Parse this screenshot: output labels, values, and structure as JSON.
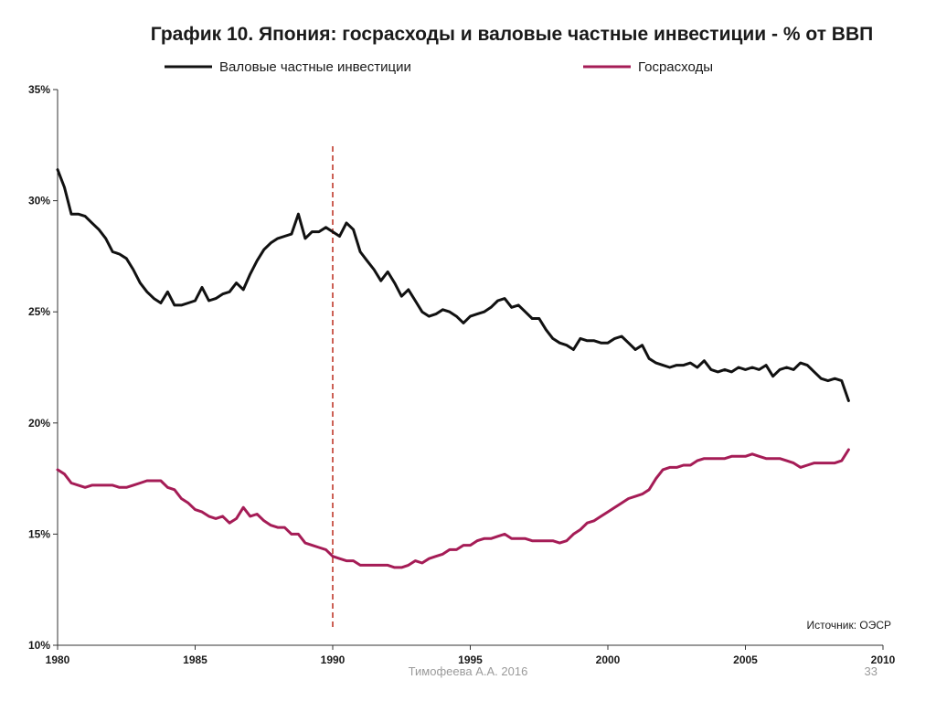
{
  "slide": {
    "footer_author": "Тимофеева А.А. 2016",
    "page_number": "33"
  },
  "chart_data": {
    "type": "line",
    "title": "График 10. Япония: госрасходы и валовые частные инвестиции - % от ВВП",
    "source": "Источник: ОЭСР",
    "xlim": [
      1980,
      2010
    ],
    "ylim": [
      10,
      35
    ],
    "x_ticks": [
      1980,
      1985,
      1990,
      1995,
      2000,
      2005,
      2010
    ],
    "y_ticks": [
      10,
      15,
      20,
      25,
      30,
      35
    ],
    "y_tick_labels": [
      "10%",
      "15%",
      "20%",
      "25%",
      "30%",
      "35%"
    ],
    "x_tick_labels": [
      "1980",
      "1985",
      "1990",
      "1995",
      "2000",
      "2005",
      "2010"
    ],
    "legend_position": "top",
    "reference_line": {
      "x": 1990,
      "style": "dashed",
      "color": "#c0392b"
    },
    "series": [
      {
        "name": "Валовые частные инвестиции",
        "color": "#111111",
        "x": [
          1980.0,
          1980.25,
          1980.5,
          1980.75,
          1981.0,
          1981.25,
          1981.5,
          1981.75,
          1982.0,
          1982.25,
          1982.5,
          1982.75,
          1983.0,
          1983.25,
          1983.5,
          1983.75,
          1984.0,
          1984.25,
          1984.5,
          1984.75,
          1985.0,
          1985.25,
          1985.5,
          1985.75,
          1986.0,
          1986.25,
          1986.5,
          1986.75,
          1987.0,
          1987.25,
          1987.5,
          1987.75,
          1988.0,
          1988.25,
          1988.5,
          1988.75,
          1989.0,
          1989.25,
          1989.5,
          1989.75,
          1990.0,
          1990.25,
          1990.5,
          1990.75,
          1991.0,
          1991.25,
          1991.5,
          1991.75,
          1992.0,
          1992.25,
          1992.5,
          1992.75,
          1993.0,
          1993.25,
          1993.5,
          1993.75,
          1994.0,
          1994.25,
          1994.5,
          1994.75,
          1995.0,
          1995.25,
          1995.5,
          1995.75,
          1996.0,
          1996.25,
          1996.5,
          1996.75,
          1997.0,
          1997.25,
          1997.5,
          1997.75,
          1998.0,
          1998.25,
          1998.5,
          1998.75,
          1999.0,
          1999.25,
          1999.5,
          1999.75,
          2000.0,
          2000.25,
          2000.5,
          2000.75,
          2001.0,
          2001.25,
          2001.5,
          2001.75,
          2002.0,
          2002.25,
          2002.5,
          2002.75,
          2003.0,
          2003.25,
          2003.5,
          2003.75,
          2004.0,
          2004.25,
          2004.5,
          2004.75,
          2005.0,
          2005.25,
          2005.5,
          2005.75,
          2006.0,
          2006.25,
          2006.5,
          2006.75,
          2007.0,
          2007.25,
          2007.5,
          2007.75,
          2008.0,
          2008.25,
          2008.5,
          2008.75
        ],
        "values": [
          31.4,
          30.6,
          29.4,
          29.4,
          29.3,
          29.0,
          28.7,
          28.3,
          27.7,
          27.6,
          27.4,
          26.9,
          26.3,
          25.9,
          25.6,
          25.4,
          25.9,
          25.3,
          25.3,
          25.4,
          25.5,
          26.1,
          25.5,
          25.6,
          25.8,
          25.9,
          26.3,
          26.0,
          26.7,
          27.3,
          27.8,
          28.1,
          28.3,
          28.4,
          28.5,
          29.4,
          28.3,
          28.6,
          28.6,
          28.8,
          28.6,
          28.4,
          29.0,
          28.7,
          27.7,
          27.3,
          26.9,
          26.4,
          26.8,
          26.3,
          25.7,
          26.0,
          25.5,
          25.0,
          24.8,
          24.9,
          25.1,
          25.0,
          24.8,
          24.5,
          24.8,
          24.9,
          25.0,
          25.2,
          25.5,
          25.6,
          25.2,
          25.3,
          25.0,
          24.7,
          24.7,
          24.2,
          23.8,
          23.6,
          23.5,
          23.3,
          23.8,
          23.7,
          23.7,
          23.6,
          23.6,
          23.8,
          23.9,
          23.6,
          23.3,
          23.5,
          22.9,
          22.7,
          22.6,
          22.5,
          22.6,
          22.6,
          22.7,
          22.5,
          22.8,
          22.4,
          22.3,
          22.4,
          22.3,
          22.5,
          22.4,
          22.5,
          22.4,
          22.6,
          22.1,
          22.4,
          22.5,
          22.4,
          22.7,
          22.6,
          22.3,
          22.0,
          21.9,
          22.0,
          21.9,
          21.0
        ]
      },
      {
        "name": "Госрасходы",
        "color": "#a51c56",
        "x": [
          1980.0,
          1980.25,
          1980.5,
          1980.75,
          1981.0,
          1981.25,
          1981.5,
          1981.75,
          1982.0,
          1982.25,
          1982.5,
          1982.75,
          1983.0,
          1983.25,
          1983.5,
          1983.75,
          1984.0,
          1984.25,
          1984.5,
          1984.75,
          1985.0,
          1985.25,
          1985.5,
          1985.75,
          1986.0,
          1986.25,
          1986.5,
          1986.75,
          1987.0,
          1987.25,
          1987.5,
          1987.75,
          1988.0,
          1988.25,
          1988.5,
          1988.75,
          1989.0,
          1989.25,
          1989.5,
          1989.75,
          1990.0,
          1990.25,
          1990.5,
          1990.75,
          1991.0,
          1991.25,
          1991.5,
          1991.75,
          1992.0,
          1992.25,
          1992.5,
          1992.75,
          1993.0,
          1993.25,
          1993.5,
          1993.75,
          1994.0,
          1994.25,
          1994.5,
          1994.75,
          1995.0,
          1995.25,
          1995.5,
          1995.75,
          1996.0,
          1996.25,
          1996.5,
          1996.75,
          1997.0,
          1997.25,
          1997.5,
          1997.75,
          1998.0,
          1998.25,
          1998.5,
          1998.75,
          1999.0,
          1999.25,
          1999.5,
          1999.75,
          2000.0,
          2000.25,
          2000.5,
          2000.75,
          2001.0,
          2001.25,
          2001.5,
          2001.75,
          2002.0,
          2002.25,
          2002.5,
          2002.75,
          2003.0,
          2003.25,
          2003.5,
          2003.75,
          2004.0,
          2004.25,
          2004.5,
          2004.75,
          2005.0,
          2005.25,
          2005.5,
          2005.75,
          2006.0,
          2006.25,
          2006.5,
          2006.75,
          2007.0,
          2007.25,
          2007.5,
          2007.75,
          2008.0,
          2008.25,
          2008.5,
          2008.75
        ],
        "values": [
          17.9,
          17.7,
          17.3,
          17.2,
          17.1,
          17.2,
          17.2,
          17.2,
          17.2,
          17.1,
          17.1,
          17.2,
          17.3,
          17.4,
          17.4,
          17.4,
          17.1,
          17.0,
          16.6,
          16.4,
          16.1,
          16.0,
          15.8,
          15.7,
          15.8,
          15.5,
          15.7,
          16.2,
          15.8,
          15.9,
          15.6,
          15.4,
          15.3,
          15.3,
          15.0,
          15.0,
          14.6,
          14.5,
          14.4,
          14.3,
          14.0,
          13.9,
          13.8,
          13.8,
          13.6,
          13.6,
          13.6,
          13.6,
          13.6,
          13.5,
          13.5,
          13.6,
          13.8,
          13.7,
          13.9,
          14.0,
          14.1,
          14.3,
          14.3,
          14.5,
          14.5,
          14.7,
          14.8,
          14.8,
          14.9,
          15.0,
          14.8,
          14.8,
          14.8,
          14.7,
          14.7,
          14.7,
          14.7,
          14.6,
          14.7,
          15.0,
          15.2,
          15.5,
          15.6,
          15.8,
          16.0,
          16.2,
          16.4,
          16.6,
          16.7,
          16.8,
          17.0,
          17.5,
          17.9,
          18.0,
          18.0,
          18.1,
          18.1,
          18.3,
          18.4,
          18.4,
          18.4,
          18.4,
          18.5,
          18.5,
          18.5,
          18.6,
          18.5,
          18.4,
          18.4,
          18.4,
          18.3,
          18.2,
          18.0,
          18.1,
          18.2,
          18.2,
          18.2,
          18.2,
          18.3,
          18.8
        ]
      }
    ]
  }
}
